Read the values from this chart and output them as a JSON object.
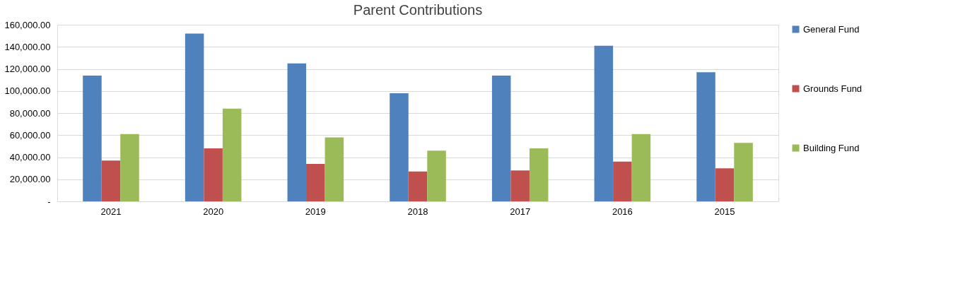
{
  "chart_data": {
    "type": "bar",
    "title": "Parent Contributions",
    "categories": [
      "2021",
      "2020",
      "2019",
      "2018",
      "2017",
      "2016",
      "2015"
    ],
    "series": [
      {
        "name": "General Fund",
        "color": "#4f81bd",
        "values": [
          114000,
          152000,
          125000,
          98000,
          114000,
          141000,
          117000
        ]
      },
      {
        "name": "Grounds Fund",
        "color": "#c0504d",
        "values": [
          37000,
          48000,
          34000,
          27000,
          28000,
          36000,
          30000
        ]
      },
      {
        "name": "Building Fund",
        "color": "#9bbb59",
        "values": [
          61000,
          84000,
          58000,
          46000,
          48000,
          61000,
          53000
        ]
      }
    ],
    "ylim": [
      0,
      160000
    ],
    "yticks": [
      {
        "value": 0,
        "label": "-"
      },
      {
        "value": 20000,
        "label": "20,000.00"
      },
      {
        "value": 40000,
        "label": "40,000.00"
      },
      {
        "value": 60000,
        "label": "60,000.00"
      },
      {
        "value": 80000,
        "label": "80,000.00"
      },
      {
        "value": 100000,
        "label": "100,000.00"
      },
      {
        "value": 120000,
        "label": "120,000.00"
      },
      {
        "value": 140000,
        "label": "140,000.00"
      },
      {
        "value": 160000,
        "label": "160,000.00"
      }
    ],
    "grid": "y",
    "legend": "right"
  }
}
